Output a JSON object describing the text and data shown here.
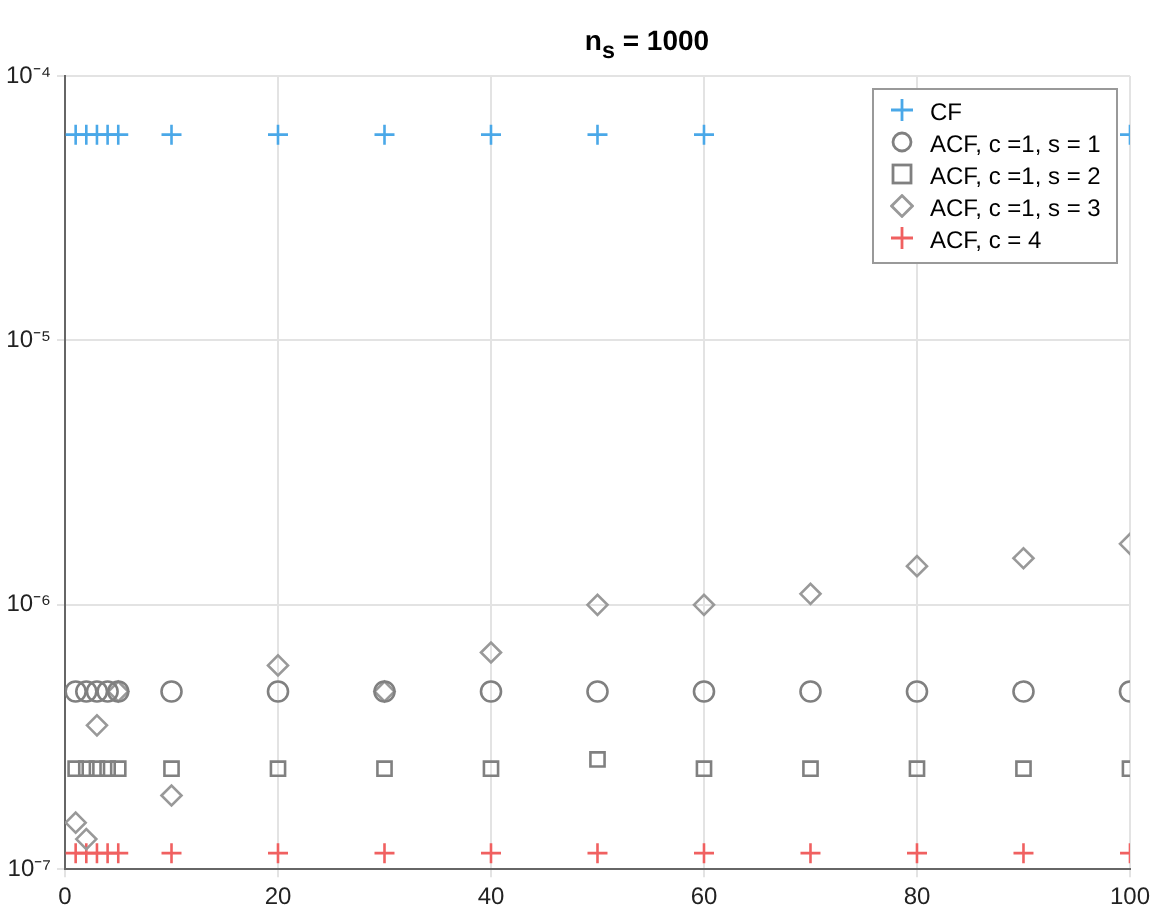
{
  "chart_data": {
    "type": "scatter",
    "title": "n$_{s}$ = 1000",
    "x": [
      1,
      2,
      3,
      4,
      5,
      10,
      20,
      30,
      40,
      50,
      60,
      70,
      80,
      90,
      100
    ],
    "series": [
      {
        "name": "CF",
        "color": "#4aa8e8",
        "marker": "cross",
        "values": [
          6e-05,
          6e-05,
          6e-05,
          6e-05,
          6e-05,
          6e-05,
          6e-05,
          6e-05,
          6e-05,
          6e-05,
          6e-05,
          null,
          null,
          null,
          6e-05
        ]
      },
      {
        "name": "ACF, c =1, s = 1",
        "color": "#808080",
        "marker": "circle",
        "values": [
          4.7e-07,
          4.7e-07,
          4.7e-07,
          4.7e-07,
          4.7e-07,
          4.7e-07,
          4.7e-07,
          4.7e-07,
          4.7e-07,
          4.7e-07,
          4.7e-07,
          4.7e-07,
          4.7e-07,
          4.7e-07,
          4.7e-07
        ]
      },
      {
        "name": "ACF, c =1, s = 2",
        "color": "#808080",
        "marker": "square",
        "values": [
          2.4e-07,
          2.4e-07,
          2.4e-07,
          2.4e-07,
          2.4e-07,
          2.4e-07,
          2.4e-07,
          2.4e-07,
          2.4e-07,
          2.6e-07,
          2.4e-07,
          2.4e-07,
          2.4e-07,
          2.4e-07,
          2.4e-07
        ]
      },
      {
        "name": "ACF, c =1, s = 3",
        "color": "#999999",
        "marker": "diamond",
        "values": [
          1.5e-07,
          1.3e-07,
          3.5e-07,
          null,
          4.7e-07,
          1.9e-07,
          5.9e-07,
          4.7e-07,
          6.6e-07,
          1e-06,
          1e-06,
          1.1e-06,
          1.4e-06,
          1.5e-06,
          1.7e-06
        ]
      },
      {
        "name": "ACF, c = 4",
        "color": "#f06060",
        "marker": "cross",
        "values": [
          1.15e-07,
          1.15e-07,
          1.15e-07,
          1.15e-07,
          1.15e-07,
          1.15e-07,
          1.15e-07,
          1.15e-07,
          1.15e-07,
          1.15e-07,
          1.15e-07,
          1.15e-07,
          1.15e-07,
          1.15e-07,
          1.15e-07
        ]
      }
    ],
    "log": "y",
    "xlim": [
      0,
      100
    ],
    "xticks": [
      0,
      20,
      40,
      60,
      80,
      100
    ],
    "ylim": [
      1e-07,
      0.0001
    ],
    "yticks": [
      {
        "value": 1e-07,
        "label": "10⁻⁷"
      },
      {
        "value": 1e-06,
        "label": "10⁻⁶"
      },
      {
        "value": 1e-05,
        "label": "10⁻⁵"
      },
      {
        "value": 0.0001,
        "label": "10⁻⁴"
      }
    ],
    "grid": true,
    "legend": "top right"
  }
}
